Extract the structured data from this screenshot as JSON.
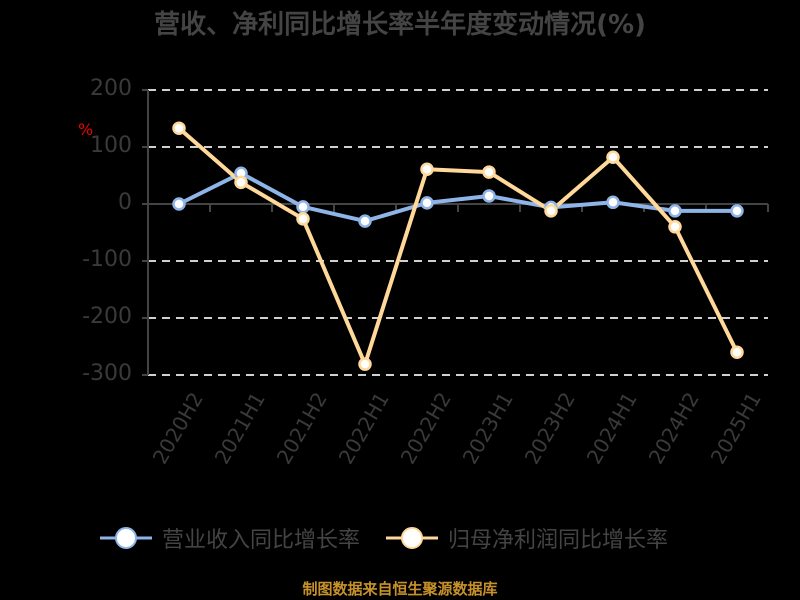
{
  "title": "营收、净利同比增长率半年度变动情况(%)",
  "source": "制图数据来自恒生聚源数据库",
  "chart_data": {
    "type": "line",
    "title": "营收、净利同比增长率半年度变动情况(%)",
    "xlabel": "",
    "ylabel": "%",
    "ylim": [
      -300,
      200
    ],
    "yticks": [
      200,
      100,
      0,
      -100,
      -200,
      -300
    ],
    "grid": true,
    "legend_position": "bottom",
    "categories": [
      "2020H2",
      "2021H1",
      "2021H2",
      "2022H1",
      "2022H2",
      "2023H1",
      "2023H2",
      "2024H1",
      "2024H2",
      "2025H1"
    ],
    "series": [
      {
        "name": "营业收入同比增长率",
        "color": "#8fb4e8",
        "values": [
          0,
          54,
          -5,
          -30,
          2,
          14,
          -6,
          3,
          -12,
          -12
        ]
      },
      {
        "name": "归母净利润同比增长率",
        "color": "#ffd89a",
        "values": [
          133,
          38,
          -26,
          -281,
          61,
          56,
          -12,
          82,
          -40,
          -260
        ]
      }
    ]
  },
  "legend": [
    {
      "label": "营业收入同比增长率",
      "color": "#8fb4e8"
    },
    {
      "label": "归母净利润同比增长率",
      "color": "#ffd89a"
    }
  ],
  "yaxis_unit": "%"
}
